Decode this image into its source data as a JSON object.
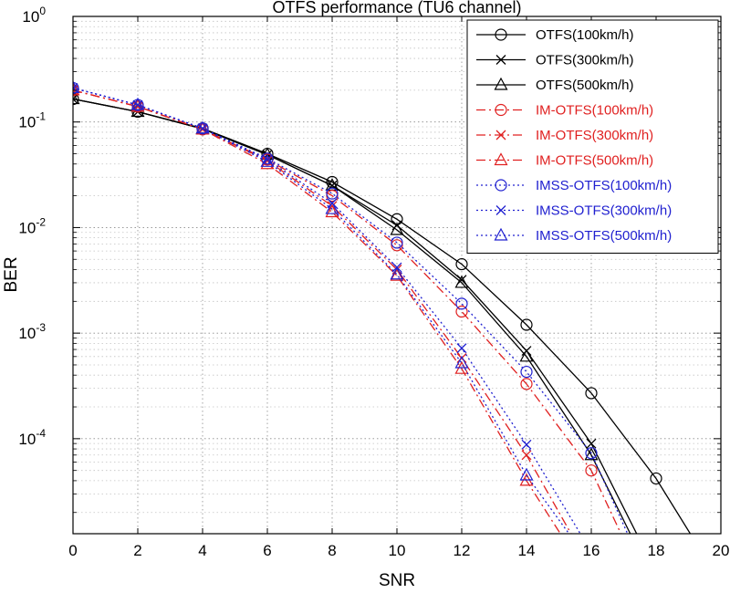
{
  "chart_data": {
    "type": "line",
    "title": "OTFS performance (TU6 channel)",
    "xlabel": "SNR",
    "ylabel": "BER",
    "xlim": [
      0,
      20
    ],
    "ylim": [
      1e-05,
      1
    ],
    "yscale": "log",
    "xticks": [
      0,
      2,
      4,
      6,
      8,
      10,
      12,
      14,
      16,
      18,
      20
    ],
    "yticks": [
      {
        "value": 1,
        "base": "10",
        "exp": "0"
      },
      {
        "value": 0.1,
        "base": "10",
        "exp": "-1"
      },
      {
        "value": 0.01,
        "base": "10",
        "exp": "-2"
      },
      {
        "value": 0.001,
        "base": "10",
        "exp": "-3"
      },
      {
        "value": 0.0001,
        "base": "10",
        "exp": "-4"
      }
    ],
    "grid": true,
    "legend_position": "top-right",
    "series": [
      {
        "name": "OTFS(100km/h)",
        "color": "#000000",
        "dash": "solid",
        "marker": "circle",
        "x": [
          0,
          2,
          4,
          6,
          8,
          10,
          12,
          14,
          16,
          18,
          19.3
        ],
        "y": [
          0.165,
          0.125,
          0.087,
          0.05,
          0.027,
          0.012,
          0.0045,
          0.0012,
          0.00027,
          4.2e-05,
          9.5e-06
        ]
      },
      {
        "name": "OTFS(300km/h)",
        "color": "#000000",
        "dash": "solid",
        "marker": "x",
        "x": [
          0,
          2,
          4,
          6,
          8,
          10,
          12,
          14,
          16,
          17.6
        ],
        "y": [
          0.165,
          0.125,
          0.086,
          0.049,
          0.025,
          0.0105,
          0.0032,
          0.00068,
          9e-05,
          9.5e-06
        ]
      },
      {
        "name": "OTFS(500km/h)",
        "color": "#000000",
        "dash": "solid",
        "marker": "triangle",
        "x": [
          0,
          2,
          4,
          6,
          8,
          10,
          12,
          14,
          16,
          17.4
        ],
        "y": [
          0.165,
          0.125,
          0.086,
          0.049,
          0.025,
          0.0095,
          0.003,
          0.0006,
          7e-05,
          9.5e-06
        ]
      },
      {
        "name": "IM-OTFS(100km/h)",
        "color": "#e02020",
        "dash": "dashdot",
        "marker": "circle",
        "x": [
          0,
          2,
          4,
          6,
          8,
          10,
          12,
          14,
          16,
          17.1
        ],
        "y": [
          0.2,
          0.14,
          0.085,
          0.044,
          0.02,
          0.0068,
          0.0016,
          0.00033,
          5e-05,
          9.5e-06
        ]
      },
      {
        "name": "IM-OTFS(300km/h)",
        "color": "#e02020",
        "dash": "dashdot",
        "marker": "x",
        "x": [
          0,
          2,
          4,
          6,
          8,
          10,
          12,
          14,
          15.6
        ],
        "y": [
          0.2,
          0.14,
          0.085,
          0.043,
          0.016,
          0.004,
          0.00058,
          7e-05,
          9.5e-06
        ]
      },
      {
        "name": "IM-OTFS(500km/h)",
        "color": "#e02020",
        "dash": "dashdot",
        "marker": "triangle",
        "x": [
          0,
          2,
          4,
          6,
          8,
          10,
          12,
          14,
          15.3
        ],
        "y": [
          0.2,
          0.14,
          0.085,
          0.04,
          0.014,
          0.0035,
          0.00046,
          4e-05,
          9.5e-06
        ]
      },
      {
        "name": "IMSS-OTFS(100km/h)",
        "color": "#2020d0",
        "dash": "dotted",
        "marker": "circle",
        "x": [
          0,
          2,
          4,
          6,
          8,
          10,
          12,
          14,
          16,
          17.3
        ],
        "y": [
          0.21,
          0.145,
          0.087,
          0.045,
          0.021,
          0.0072,
          0.0019,
          0.00043,
          7.3e-05,
          9.5e-06
        ]
      },
      {
        "name": "IMSS-OTFS(300km/h)",
        "color": "#2020d0",
        "dash": "dotted",
        "marker": "x",
        "x": [
          0,
          2,
          4,
          6,
          8,
          10,
          12,
          14,
          15.9
        ],
        "y": [
          0.21,
          0.145,
          0.087,
          0.044,
          0.017,
          0.0042,
          0.00072,
          8.8e-05,
          9.5e-06
        ]
      },
      {
        "name": "IMSS-OTFS(500km/h)",
        "color": "#2020d0",
        "dash": "dotted",
        "marker": "triangle",
        "x": [
          0,
          2,
          4,
          6,
          8,
          10,
          12,
          14,
          15.6
        ],
        "y": [
          0.21,
          0.145,
          0.087,
          0.042,
          0.015,
          0.0036,
          0.00052,
          4.5e-05,
          9.5e-06
        ]
      }
    ]
  }
}
